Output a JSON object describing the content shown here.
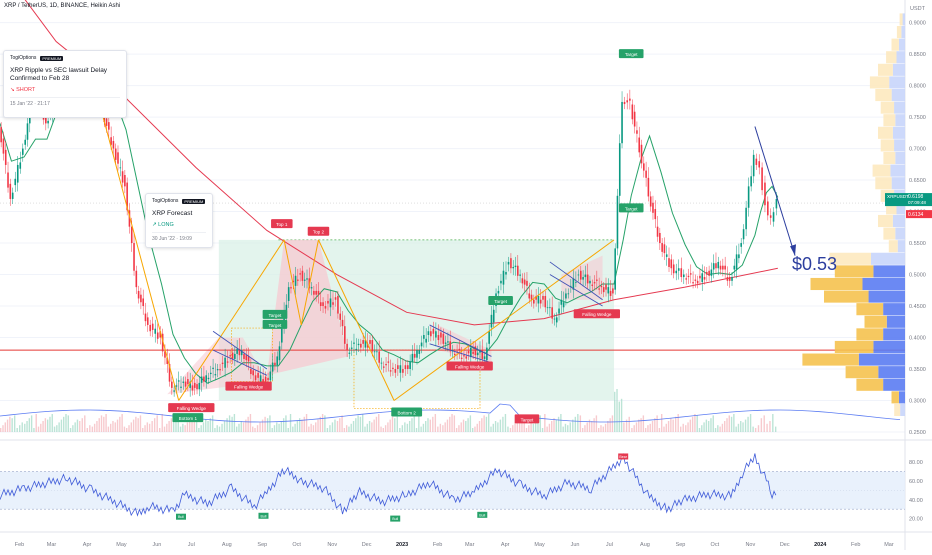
{
  "header": {
    "title": "XRP / TetherUS, 1D, BINANCE, Heikin Ashi"
  },
  "ideas": [
    {
      "author": "TogiOptions",
      "badge": "PREMIUM",
      "title": "XRP Ripple vs SEC  lawsuit Delay Confirmed to Feb 28",
      "direction": "↘ SHORT",
      "date": "15 Jan '22 · 21:17"
    },
    {
      "author": "TogiOptions",
      "badge": "PREMIUM",
      "title": "XRP Forecast",
      "direction": "↗ LONG",
      "date": "30 Jun '22 · 19:09"
    }
  ],
  "big_price": "$0.53",
  "price_axis": {
    "currency": "USDT",
    "ticks": [
      "0.9000",
      "0.8500",
      "0.8000",
      "0.7500",
      "0.7000",
      "0.6500",
      "0.6000",
      "0.5500",
      "0.5000",
      "0.4500",
      "0.4000",
      "0.3500",
      "0.3000",
      "0.2500"
    ],
    "last_symbol": "XRPUSDT",
    "last_price": "0.6198",
    "countdown": "07:09:48",
    "other_price": "0.6134"
  },
  "time_axis": [
    "Feb",
    "Mar",
    "Apr",
    "May",
    "Jun",
    "Jul",
    "Aug",
    "Sep",
    "Oct",
    "Nov",
    "Dec",
    "2023",
    "Feb",
    "Mar",
    "Apr",
    "May",
    "Jun",
    "Jul",
    "Aug",
    "Sep",
    "Oct",
    "Nov",
    "Dec",
    "2024",
    "Feb",
    "Mar"
  ],
  "rsi_axis": [
    "80.00",
    "60.00",
    "40.00",
    "20.00"
  ],
  "annotations": {
    "falling_wedge": "Falling Wedge",
    "target": "Target",
    "bottom1": "Bottom 1",
    "bottom2": "Bottom 2",
    "top1": "Top 1",
    "top2": "Top 2",
    "bull": "Bull",
    "bear": "Bear"
  },
  "chart_data": {
    "type": "line",
    "title": "",
    "x_range": [
      "2022-01-15",
      "2024-03-15"
    ],
    "ylim": [
      0.25,
      0.92
    ],
    "scale": "linear",
    "series": [
      {
        "values": [
          [
            "2022-01-15",
            0.74
          ],
          [
            "2022-01-25",
            0.62
          ],
          [
            "2022-02-05",
            0.7
          ],
          [
            "2022-02-15",
            0.8
          ],
          [
            "2022-02-25",
            0.74
          ],
          [
            "2022-03-05",
            0.78
          ],
          [
            "2022-03-15",
            0.8
          ],
          [
            "2022-03-25",
            0.84
          ],
          [
            "2022-04-05",
            0.82
          ],
          [
            "2022-04-15",
            0.76
          ],
          [
            "2022-04-25",
            0.7
          ],
          [
            "2022-05-05",
            0.64
          ],
          [
            "2022-05-15",
            0.48
          ],
          [
            "2022-05-25",
            0.42
          ],
          [
            "2022-06-05",
            0.4
          ],
          [
            "2022-06-15",
            0.32
          ],
          [
            "2022-06-25",
            0.33
          ],
          [
            "2022-07-05",
            0.32
          ],
          [
            "2022-07-15",
            0.34
          ],
          [
            "2022-07-25",
            0.35
          ],
          [
            "2022-08-05",
            0.37
          ],
          [
            "2022-08-15",
            0.38
          ],
          [
            "2022-08-25",
            0.34
          ],
          [
            "2022-09-05",
            0.33
          ],
          [
            "2022-09-15",
            0.37
          ],
          [
            "2022-09-25",
            0.48
          ],
          [
            "2022-10-05",
            0.5
          ],
          [
            "2022-10-15",
            0.48
          ],
          [
            "2022-10-25",
            0.45
          ],
          [
            "2022-11-05",
            0.46
          ],
          [
            "2022-11-15",
            0.38
          ],
          [
            "2022-11-25",
            0.39
          ],
          [
            "2022-12-05",
            0.39
          ],
          [
            "2022-12-15",
            0.36
          ],
          [
            "2022-12-25",
            0.35
          ],
          [
            "2023-01-05",
            0.35
          ],
          [
            "2023-01-15",
            0.38
          ],
          [
            "2023-01-25",
            0.41
          ],
          [
            "2023-02-05",
            0.4
          ],
          [
            "2023-02-15",
            0.38
          ],
          [
            "2023-02-25",
            0.37
          ],
          [
            "2023-03-05",
            0.38
          ],
          [
            "2023-03-15",
            0.37
          ],
          [
            "2023-03-25",
            0.47
          ],
          [
            "2023-04-05",
            0.52
          ],
          [
            "2023-04-15",
            0.5
          ],
          [
            "2023-04-25",
            0.46
          ],
          [
            "2023-05-05",
            0.46
          ],
          [
            "2023-05-15",
            0.43
          ],
          [
            "2023-05-25",
            0.47
          ],
          [
            "2023-06-05",
            0.5
          ],
          [
            "2023-06-15",
            0.49
          ],
          [
            "2023-06-25",
            0.48
          ],
          [
            "2023-07-05",
            0.47
          ],
          [
            "2023-07-13",
            0.78
          ],
          [
            "2023-07-20",
            0.77
          ],
          [
            "2023-07-28",
            0.7
          ],
          [
            "2023-08-05",
            0.63
          ],
          [
            "2023-08-15",
            0.55
          ],
          [
            "2023-08-25",
            0.51
          ],
          [
            "2023-09-05",
            0.5
          ],
          [
            "2023-09-15",
            0.49
          ],
          [
            "2023-09-25",
            0.5
          ],
          [
            "2023-10-05",
            0.52
          ],
          [
            "2023-10-15",
            0.49
          ],
          [
            "2023-10-25",
            0.55
          ],
          [
            "2023-11-05",
            0.69
          ],
          [
            "2023-11-10",
            0.67
          ],
          [
            "2023-11-15",
            0.61
          ],
          [
            "2023-11-20",
            0.59
          ],
          [
            "2023-11-25",
            0.62
          ]
        ]
      },
      {
        "values": [
          [
            "2022-01-15",
            0.99
          ],
          [
            "2022-03-05",
            0.87
          ],
          [
            "2022-05-05",
            0.78
          ],
          [
            "2022-07-05",
            0.67
          ],
          [
            "2022-09-05",
            0.57
          ],
          [
            "2022-11-05",
            0.5
          ],
          [
            "2023-01-05",
            0.44
          ],
          [
            "2023-03-05",
            0.42
          ],
          [
            "2023-05-05",
            0.43
          ],
          [
            "2023-07-05",
            0.46
          ],
          [
            "2023-09-05",
            0.48
          ],
          [
            "2023-11-25",
            0.51
          ]
        ]
      }
    ],
    "volume_profile": [
      [
        0.905,
        0.02
      ],
      [
        0.885,
        0.03
      ],
      [
        0.865,
        0.05
      ],
      [
        0.845,
        0.07
      ],
      [
        0.825,
        0.1
      ],
      [
        0.805,
        0.13
      ],
      [
        0.785,
        0.11
      ],
      [
        0.765,
        0.09
      ],
      [
        0.745,
        0.08
      ],
      [
        0.725,
        0.1
      ],
      [
        0.705,
        0.09
      ],
      [
        0.685,
        0.08
      ],
      [
        0.665,
        0.12
      ],
      [
        0.645,
        0.11
      ],
      [
        0.625,
        0.09
      ],
      [
        0.605,
        0.07
      ],
      [
        0.585,
        0.1
      ],
      [
        0.565,
        0.08
      ],
      [
        0.545,
        0.06
      ],
      [
        0.525,
        0.28
      ],
      [
        0.505,
        0.26
      ],
      [
        0.485,
        0.35
      ],
      [
        0.465,
        0.3
      ],
      [
        0.445,
        0.18
      ],
      [
        0.425,
        0.15
      ],
      [
        0.405,
        0.18
      ],
      [
        0.385,
        0.26
      ],
      [
        0.365,
        0.38
      ],
      [
        0.345,
        0.22
      ],
      [
        0.325,
        0.18
      ],
      [
        0.305,
        0.05
      ],
      [
        0.285,
        0.04
      ]
    ],
    "rsi": {
      "ylim": [
        10,
        95
      ],
      "bands": [
        30,
        70
      ],
      "values": [
        [
          "2022-01-15",
          45
        ],
        [
          "2022-02-05",
          52
        ],
        [
          "2022-02-25",
          58
        ],
        [
          "2022-03-15",
          63
        ],
        [
          "2022-04-05",
          50
        ],
        [
          "2022-04-25",
          38
        ],
        [
          "2022-05-15",
          25
        ],
        [
          "2022-05-25",
          33
        ],
        [
          "2022-06-15",
          28
        ],
        [
          "2022-06-25",
          45
        ],
        [
          "2022-07-15",
          36
        ],
        [
          "2022-08-05",
          52
        ],
        [
          "2022-08-25",
          33
        ],
        [
          "2022-09-05",
          48
        ],
        [
          "2022-09-20",
          72
        ],
        [
          "2022-10-05",
          60
        ],
        [
          "2022-10-25",
          52
        ],
        [
          "2022-11-10",
          28
        ],
        [
          "2022-11-25",
          48
        ],
        [
          "2022-12-15",
          38
        ],
        [
          "2023-01-05",
          45
        ],
        [
          "2023-01-25",
          58
        ],
        [
          "2023-02-15",
          40
        ],
        [
          "2023-03-05",
          48
        ],
        [
          "2023-03-25",
          72
        ],
        [
          "2023-04-15",
          55
        ],
        [
          "2023-05-05",
          44
        ],
        [
          "2023-05-25",
          58
        ],
        [
          "2023-06-15",
          52
        ],
        [
          "2023-07-13",
          85
        ],
        [
          "2023-08-05",
          42
        ],
        [
          "2023-08-20",
          30
        ],
        [
          "2023-09-05",
          40
        ],
        [
          "2023-09-25",
          46
        ],
        [
          "2023-10-15",
          44
        ],
        [
          "2023-10-25",
          68
        ],
        [
          "2023-11-05",
          86
        ],
        [
          "2023-11-15",
          60
        ],
        [
          "2023-11-20",
          45
        ],
        [
          "2023-11-25",
          52
        ]
      ]
    }
  }
}
